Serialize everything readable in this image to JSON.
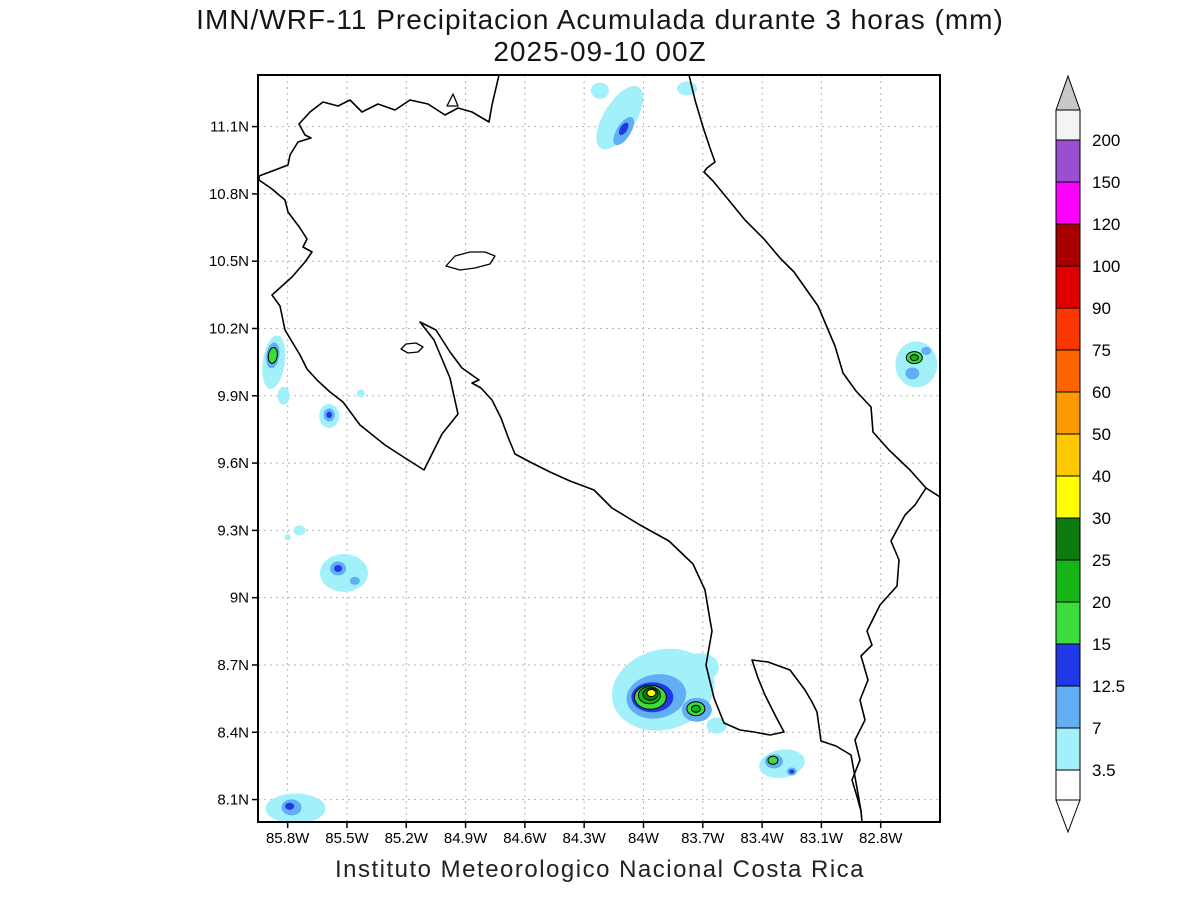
{
  "title": {
    "line1": "IMN/WRF-11 Precipitacion Acumulada durante 3 horas (mm)",
    "line2": "2025-09-10 00Z"
  },
  "footer": "Instituto Meteorologico Nacional Costa Rica",
  "chart_data": {
    "type": "heatmap",
    "title": "IMN/WRF-11 Precipitacion Acumulada durante 3 horas (mm)",
    "subtitle": "2025-09-10 00Z",
    "units": "mm",
    "grid": true,
    "legend_position": "right",
    "projection": {
      "lon_min": -85.95,
      "lon_max": -82.5,
      "lat_min": 8.0,
      "lat_max": 11.33
    },
    "axes": {
      "x": {
        "values": [
          -85.8,
          -85.5,
          -85.2,
          -84.9,
          -84.6,
          -84.3,
          -84.0,
          -83.7,
          -83.4,
          -83.1,
          -82.8
        ],
        "labels": [
          "85.8W",
          "85.5W",
          "85.2W",
          "84.9W",
          "84.6W",
          "84.3W",
          "84W",
          "83.7W",
          "83.4W",
          "83.1W",
          "82.8W"
        ]
      },
      "y": {
        "values": [
          11.1,
          10.8,
          10.5,
          10.2,
          9.9,
          9.6,
          9.3,
          9.0,
          8.7,
          8.4,
          8.1
        ],
        "labels": [
          "11.1N",
          "10.8N",
          "10.5N",
          "10.2N",
          "9.9N",
          "9.6N",
          "9.3N",
          "9N",
          "8.7N",
          "8.4N",
          "8.1N"
        ]
      }
    },
    "colorbar": {
      "levels": [
        3.5,
        7,
        12.5,
        15,
        20,
        25,
        30,
        40,
        50,
        60,
        75,
        90,
        100,
        120,
        150,
        200
      ],
      "labels": [
        "3.5",
        "7",
        "12.5",
        "15",
        "20",
        "25",
        "30",
        "40",
        "50",
        "60",
        "75",
        "90",
        "100",
        "120",
        "150",
        "200"
      ],
      "colors": [
        "#a2f0fa",
        "#62aef5",
        "#2038e8",
        "#3bdc3b",
        "#17b417",
        "#0c7a0c",
        "#ffff00",
        "#ffc800",
        "#ff9a00",
        "#ff6400",
        "#fa3700",
        "#e00000",
        "#a80000",
        "#ff00ff",
        "#9a4fd0"
      ],
      "under_color": "#ffffff",
      "over_color": "#f4f4f4",
      "over_arrow_color": "#c8c8c8",
      "under_arrow_color": "#ffffff"
    },
    "cells": [
      {
        "lon": -84.12,
        "lat": 11.14,
        "rx": 16,
        "ry": 36,
        "rot": 32,
        "level": 3.5
      },
      {
        "lon": -84.22,
        "lat": 11.26,
        "rx": 9,
        "ry": 8,
        "level": 3.5
      },
      {
        "lon": -83.78,
        "lat": 11.27,
        "rx": 10,
        "ry": 7,
        "level": 3.5
      },
      {
        "lon": -84.1,
        "lat": 11.08,
        "rx": 7,
        "ry": 16,
        "rot": 32,
        "level": 7
      },
      {
        "lon": -84.1,
        "lat": 11.09,
        "rx": 3.5,
        "ry": 7,
        "rot": 32,
        "level": 12.5
      },
      {
        "lon": -85.87,
        "lat": 10.05,
        "rx": 11,
        "ry": 27,
        "rot": 8,
        "level": 3.5
      },
      {
        "lon": -85.82,
        "lat": 9.9,
        "rx": 6,
        "ry": 9,
        "level": 3.5
      },
      {
        "lon": -85.875,
        "lat": 10.08,
        "rx": 6.5,
        "ry": 13,
        "rot": 8,
        "level": 7
      },
      {
        "lon": -85.875,
        "lat": 10.08,
        "rx": 4.5,
        "ry": 8,
        "rot": 8,
        "level": 15,
        "outline": true
      },
      {
        "lon": -85.59,
        "lat": 9.81,
        "rx": 10,
        "ry": 12,
        "level": 3.5
      },
      {
        "lon": -85.59,
        "lat": 9.815,
        "rx": 5.5,
        "ry": 6.5,
        "level": 7
      },
      {
        "lon": -85.59,
        "lat": 9.815,
        "rx": 2.8,
        "ry": 3.2,
        "level": 12.5
      },
      {
        "lon": -85.43,
        "lat": 9.91,
        "rx": 4,
        "ry": 4,
        "level": 3.5
      },
      {
        "lon": -85.74,
        "lat": 9.3,
        "rx": 6,
        "ry": 5,
        "level": 3.5
      },
      {
        "lon": -85.8,
        "lat": 9.27,
        "rx": 3,
        "ry": 3,
        "level": 3.5
      },
      {
        "lon": -85.515,
        "lat": 9.11,
        "rx": 24,
        "ry": 19,
        "level": 3.5
      },
      {
        "lon": -85.545,
        "lat": 9.13,
        "rx": 8,
        "ry": 7,
        "level": 7
      },
      {
        "lon": -85.545,
        "lat": 9.13,
        "rx": 4,
        "ry": 3.5,
        "level": 12.5
      },
      {
        "lon": -85.46,
        "lat": 9.075,
        "rx": 5,
        "ry": 4,
        "level": 7
      },
      {
        "lon": -83.9,
        "lat": 8.59,
        "rx": 52,
        "ry": 40,
        "rot": -15,
        "level": 3.5
      },
      {
        "lon": -83.71,
        "lat": 8.69,
        "rx": 18,
        "ry": 14,
        "level": 3.5
      },
      {
        "lon": -83.63,
        "lat": 8.43,
        "rx": 10,
        "ry": 8,
        "level": 3.5
      },
      {
        "lon": -83.935,
        "lat": 8.56,
        "rx": 30,
        "ry": 22,
        "rot": -10,
        "level": 7
      },
      {
        "lon": -83.73,
        "lat": 8.5,
        "rx": 15,
        "ry": 12,
        "level": 7
      },
      {
        "lon": -83.955,
        "lat": 8.556,
        "rx": 21,
        "ry": 15,
        "level": 12.5
      },
      {
        "lon": -83.965,
        "lat": 8.556,
        "rx": 16,
        "ry": 12,
        "level": 15,
        "outline": true
      },
      {
        "lon": -83.97,
        "lat": 8.565,
        "rx": 11,
        "ry": 8.5,
        "level": 20,
        "outline": true
      },
      {
        "lon": -83.965,
        "lat": 8.57,
        "rx": 7.5,
        "ry": 6,
        "level": 25,
        "outline": true
      },
      {
        "lon": -83.96,
        "lat": 8.575,
        "rx": 4.5,
        "ry": 3.5,
        "level": 30,
        "outline": true
      },
      {
        "lon": -83.735,
        "lat": 8.505,
        "rx": 9,
        "ry": 7,
        "level": 15,
        "outline": true
      },
      {
        "lon": -83.735,
        "lat": 8.505,
        "rx": 4.5,
        "ry": 3.5,
        "level": 20,
        "outline": true
      },
      {
        "lon": -83.3,
        "lat": 8.26,
        "rx": 23,
        "ry": 14,
        "rot": -10,
        "level": 3.5
      },
      {
        "lon": -83.34,
        "lat": 8.27,
        "rx": 9,
        "ry": 7,
        "level": 7
      },
      {
        "lon": -83.345,
        "lat": 8.275,
        "rx": 5,
        "ry": 4,
        "level": 15,
        "outline": true
      },
      {
        "lon": -83.25,
        "lat": 8.225,
        "rx": 5,
        "ry": 4,
        "level": 7
      },
      {
        "lon": -83.25,
        "lat": 8.225,
        "rx": 2.5,
        "ry": 2,
        "level": 12.5
      },
      {
        "lon": -85.76,
        "lat": 8.06,
        "rx": 30,
        "ry": 15,
        "level": 3.5
      },
      {
        "lon": -85.78,
        "lat": 8.065,
        "rx": 10,
        "ry": 8,
        "level": 7
      },
      {
        "lon": -85.79,
        "lat": 8.07,
        "rx": 4.5,
        "ry": 3.5,
        "level": 12.5
      },
      {
        "lon": -82.62,
        "lat": 10.04,
        "rx": 21,
        "ry": 23,
        "level": 3.5
      },
      {
        "lon": -82.64,
        "lat": 10.0,
        "rx": 7,
        "ry": 6,
        "level": 7
      },
      {
        "lon": -82.57,
        "lat": 10.1,
        "rx": 5,
        "ry": 4,
        "level": 7
      },
      {
        "lon": -82.63,
        "lat": 10.07,
        "rx": 8,
        "ry": 6,
        "level": 15,
        "outline": true
      },
      {
        "lon": -82.63,
        "lat": 10.07,
        "rx": 4,
        "ry": 3,
        "level": 20,
        "outline": true
      }
    ]
  }
}
